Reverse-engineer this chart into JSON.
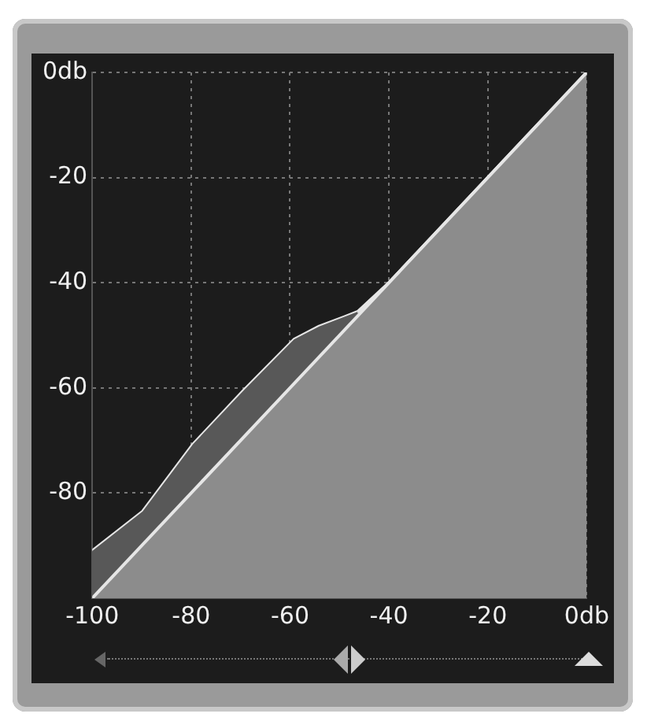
{
  "chart_data": {
    "type": "area",
    "x": [
      -100,
      -89.8,
      -79.6,
      -69.4,
      -59.2,
      -54.1,
      -49,
      -46.3,
      -40,
      -20,
      0
    ],
    "series": [
      {
        "color": "#8c8c8c",
        "x": [
          -100,
          0
        ],
        "values": [
          -100,
          0
        ]
      },
      {
        "type": "line",
        "color": "#e6e6e6",
        "values": [
          -91,
          -83.5,
          -70.7,
          -60.5,
          -50.8,
          -48.3,
          -46.5,
          -45.5,
          -40,
          -20,
          0
        ],
        "lower": [
          -100,
          -89.8,
          -79.6,
          -69.4,
          -59.2,
          -54.1,
          -49,
          -46.3,
          null,
          null,
          null
        ],
        "upper": [
          -91,
          -83.5,
          -70.7,
          -60.5,
          -50.8,
          -48.3,
          -46.5,
          -45.5,
          null,
          null,
          null
        ]
      }
    ],
    "xlim": [
      -100,
      0
    ],
    "ylim": [
      -100,
      0
    ],
    "xticks": [
      -100,
      -80,
      -60,
      -40,
      -20,
      {
        "value": 0,
        "label": "0db"
      }
    ],
    "yticks": [
      {
        "value": -100,
        "label": null
      },
      -80,
      -60,
      -40,
      -20,
      {
        "value": 0,
        "label": "0db"
      }
    ],
    "grid": true,
    "marker": "none",
    "line_style": "solid"
  }
}
